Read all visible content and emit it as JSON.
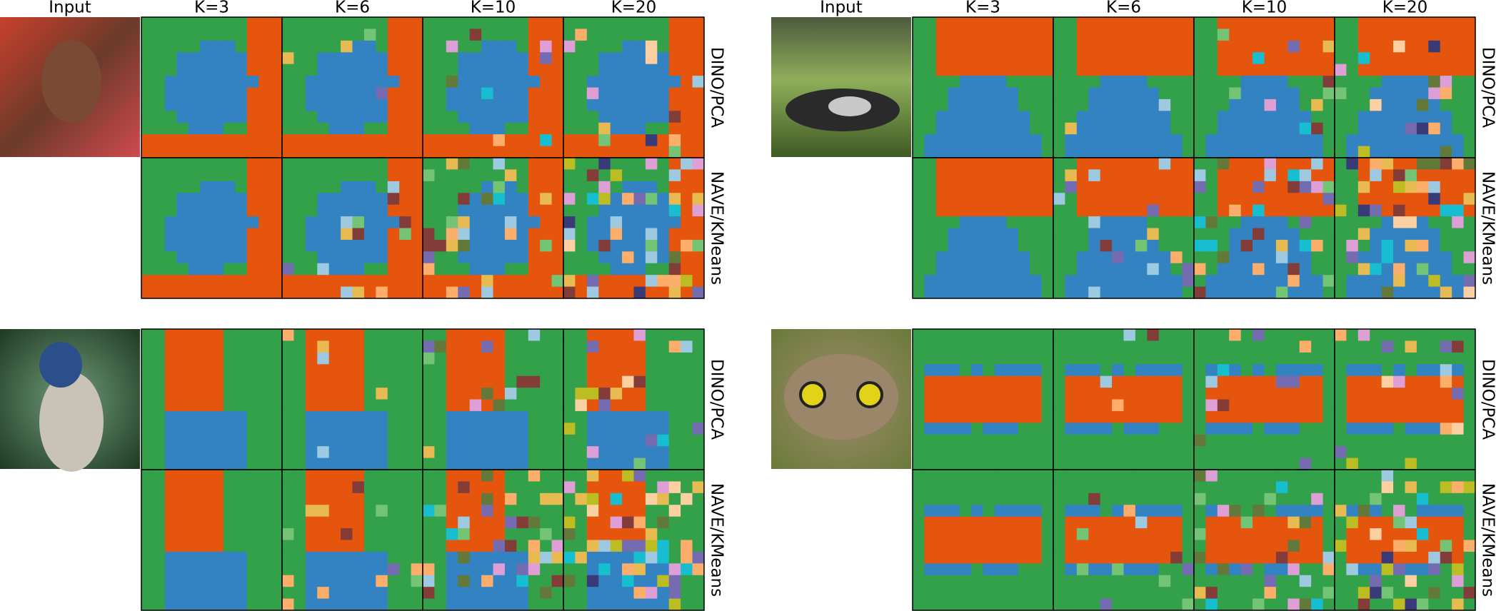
{
  "panels": [
    {
      "headers": [
        "Input",
        "K=3",
        "K=6",
        "K=10",
        "K=20"
      ],
      "rows": [
        "DINO/PCA",
        "NAVE/KMeans"
      ]
    },
    {
      "headers": [
        "Input",
        "K=3",
        "K=6",
        "K=10",
        "K=20"
      ],
      "rows": [
        "DINO/PCA",
        "NAVE/KMeans"
      ]
    },
    {
      "rows": [
        "DINO/PCA",
        "NAVE/KMeans"
      ]
    },
    {
      "rows": [
        "DINO/PCA",
        "NAVE/KMeans"
      ]
    }
  ]
}
